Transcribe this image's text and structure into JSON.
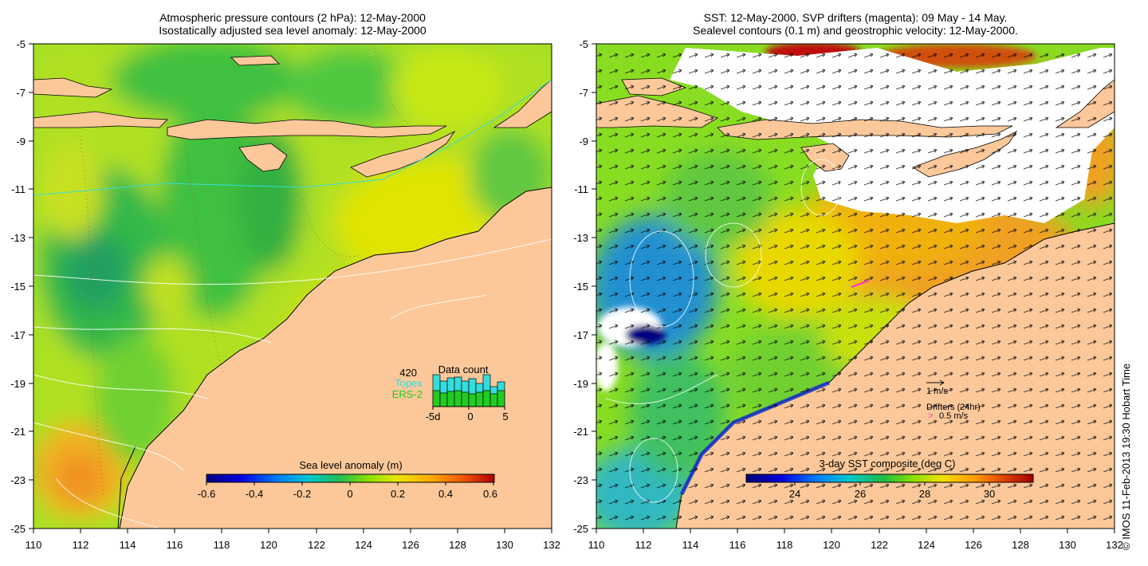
{
  "left_panel": {
    "title_line1": "Atmospheric pressure contours (2 hPa): 12-May-2000",
    "title_line2": "Isostatically adjusted sea level anomaly: 12-May-2000",
    "colorbar_label": "Sea level anomaly (m)",
    "colorbar_ticks": [
      "-0.6",
      "-0.4",
      "-0.2",
      "0",
      "0.2",
      "0.4",
      "0.6"
    ],
    "inset": {
      "title": "Data count",
      "max_count": "420",
      "series": [
        {
          "name": "Topex",
          "color": "#33dddd"
        },
        {
          "name": "ERS-2",
          "color": "#22cc22"
        }
      ],
      "x_ticks": [
        "-5d",
        "0",
        "5"
      ]
    }
  },
  "right_panel": {
    "title_line1": "SST: 12-May-2000. SVP drifters (magenta): 09 May - 14 May.",
    "title_line2": "Sealevel contours (0.1 m) and geostrophic velocity: 12-May-2000.",
    "colorbar_label": "3-day SST composite (deg C)",
    "colorbar_ticks": [
      "24",
      "26",
      "28",
      "30"
    ],
    "velocity_scale_label": "1 m/s",
    "drifter_label": "Drifters (24hr)",
    "drifter_arrow": ">",
    "drifter_scale": "0.5 m/s"
  },
  "axes": {
    "y_ticks": [
      "-5",
      "-7",
      "-9",
      "-11",
      "-13",
      "-15",
      "-17",
      "-19",
      "-21",
      "-23",
      "-25"
    ],
    "x_ticks": [
      "110",
      "112",
      "114",
      "116",
      "118",
      "120",
      "122",
      "124",
      "126",
      "128",
      "130",
      "132"
    ]
  },
  "copyright": "© IMOS 11-Feb-2013 19:30 Hobart Time",
  "colors": {
    "land": "#fcc89a",
    "drifter": "#ff33cc"
  }
}
